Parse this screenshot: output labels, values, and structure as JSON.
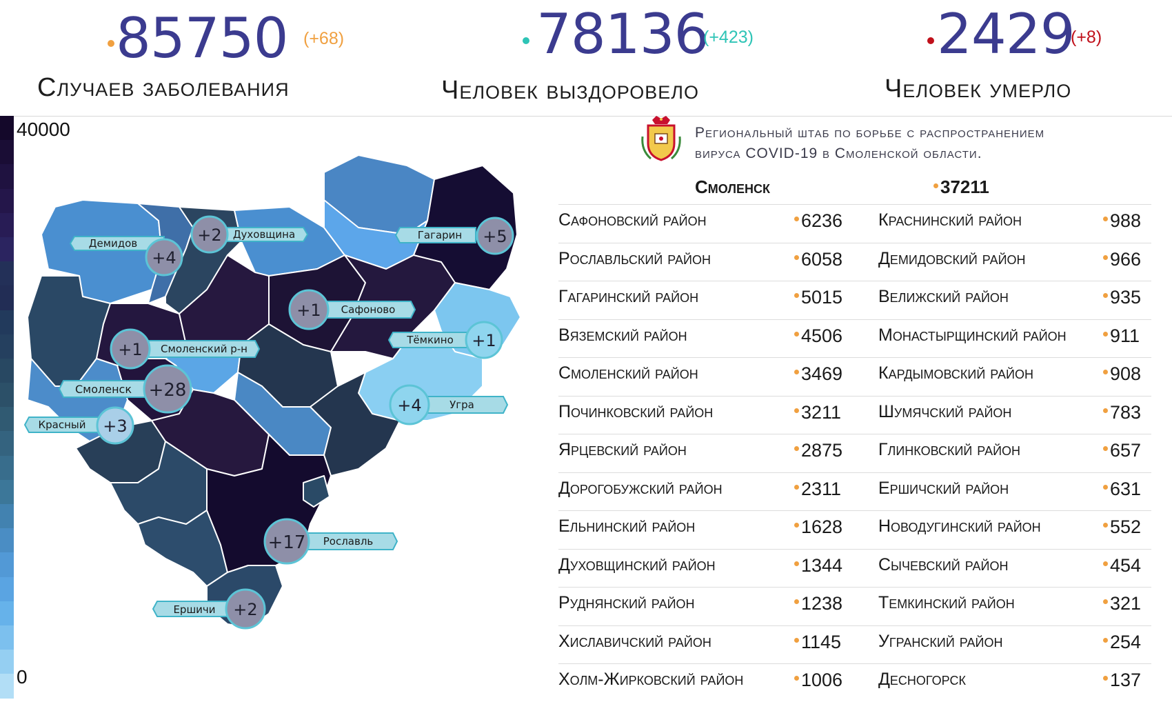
{
  "summary": {
    "cases": {
      "value": "85750",
      "delta": "(+68)",
      "label": "Случаев заболевания",
      "color": "#f0a040"
    },
    "recovered": {
      "value": "78136",
      "delta": "(+423)",
      "label": "Человек выздоровело",
      "color": "#2ec4b6"
    },
    "deaths": {
      "value": "2429",
      "delta": "(+8)",
      "label": "Человек умерло",
      "color": "#c0101a"
    }
  },
  "legend": {
    "max": "40000",
    "min": "0"
  },
  "header": {
    "line1": "Региональный штаб по борьбе с распространением",
    "line2": "вируса COVID-19 в Смоленской области.",
    "emblem_icon": "smolensk-coat-of-arms-icon"
  },
  "city": {
    "name": "Смоленск",
    "value": "37211"
  },
  "left_column": [
    {
      "name": "Сафоновский район",
      "value": "6236"
    },
    {
      "name": "Рославльский район",
      "value": "6058"
    },
    {
      "name": "Гагаринский район",
      "value": "5015"
    },
    {
      "name": "Вяземский район",
      "value": "4506"
    },
    {
      "name": "Смоленский район",
      "value": "3469"
    },
    {
      "name": "Починковский район",
      "value": "3211"
    },
    {
      "name": "Ярцевский район",
      "value": "2875"
    },
    {
      "name": "Дорогобужский район",
      "value": "2311"
    },
    {
      "name": "Ельнинский район",
      "value": "1628"
    },
    {
      "name": "Духовщинский район",
      "value": "1344"
    },
    {
      "name": "Руднянский район",
      "value": "1238"
    },
    {
      "name": "Хиславичский район",
      "value": "1145"
    },
    {
      "name": "Холм-Жирковский район",
      "value": "1006"
    }
  ],
  "right_column": [
    {
      "name": "Краснинский район",
      "value": "988"
    },
    {
      "name": "Демидовский район",
      "value": "966"
    },
    {
      "name": "Велижский район",
      "value": "935"
    },
    {
      "name": "Монастырщинский район",
      "value": "911"
    },
    {
      "name": "Кардымовский район",
      "value": "908"
    },
    {
      "name": "Шумячский район",
      "value": "783"
    },
    {
      "name": "Глинковский район",
      "value": "657"
    },
    {
      "name": "Ершичский район",
      "value": "631"
    },
    {
      "name": "Новодугинский район",
      "value": "552"
    },
    {
      "name": "Сычевский район",
      "value": "454"
    },
    {
      "name": "Темкинский район",
      "value": "321"
    },
    {
      "name": "Угранский район",
      "value": "254"
    },
    {
      "name": "Десногорск",
      "value": "137"
    }
  ],
  "map_labels": [
    {
      "name": "Демидов",
      "delta": "+4"
    },
    {
      "name": "Духовщина",
      "delta": "+2"
    },
    {
      "name": "Гагарин",
      "delta": "+5"
    },
    {
      "name": "Сафоново",
      "delta": "+1"
    },
    {
      "name": "Тёмкино",
      "delta": "+1"
    },
    {
      "name": "Смоленский р-н",
      "delta": "+1"
    },
    {
      "name": "Смоленск",
      "delta": "+28"
    },
    {
      "name": "Угра",
      "delta": "+4"
    },
    {
      "name": "Красный",
      "delta": "+3"
    },
    {
      "name": "Рославль",
      "delta": "+17"
    },
    {
      "name": "Ершичи",
      "delta": "+2"
    }
  ]
}
